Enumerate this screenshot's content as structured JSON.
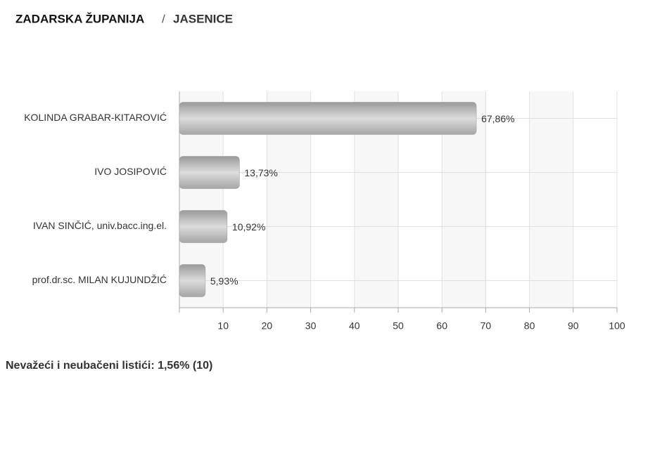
{
  "header": {
    "region": "ZADARSKA ŽUPANIJA",
    "separator": "/",
    "place": "JASENICE"
  },
  "chart_data": {
    "type": "bar",
    "orientation": "horizontal",
    "categories": [
      "KOLINDA GRABAR-KITAROVIĆ",
      "IVO JOSIPOVIĆ",
      "IVAN SINČIĆ, univ.bacc.ing.el.",
      "prof.dr.sc. MILAN KUJUNDŽIĆ"
    ],
    "values": [
      67.86,
      13.73,
      10.92,
      5.93
    ],
    "value_labels": [
      "67,86%",
      "13,73%",
      "10,92%",
      "5,93%"
    ],
    "color": "#b5b5b5",
    "xlim": [
      0,
      100
    ],
    "xticks": [
      10,
      20,
      30,
      40,
      50,
      60,
      70,
      80,
      90,
      100
    ],
    "grid": true
  },
  "footer": "Nevažeći i neubačeni listići: 1,56% (10)"
}
